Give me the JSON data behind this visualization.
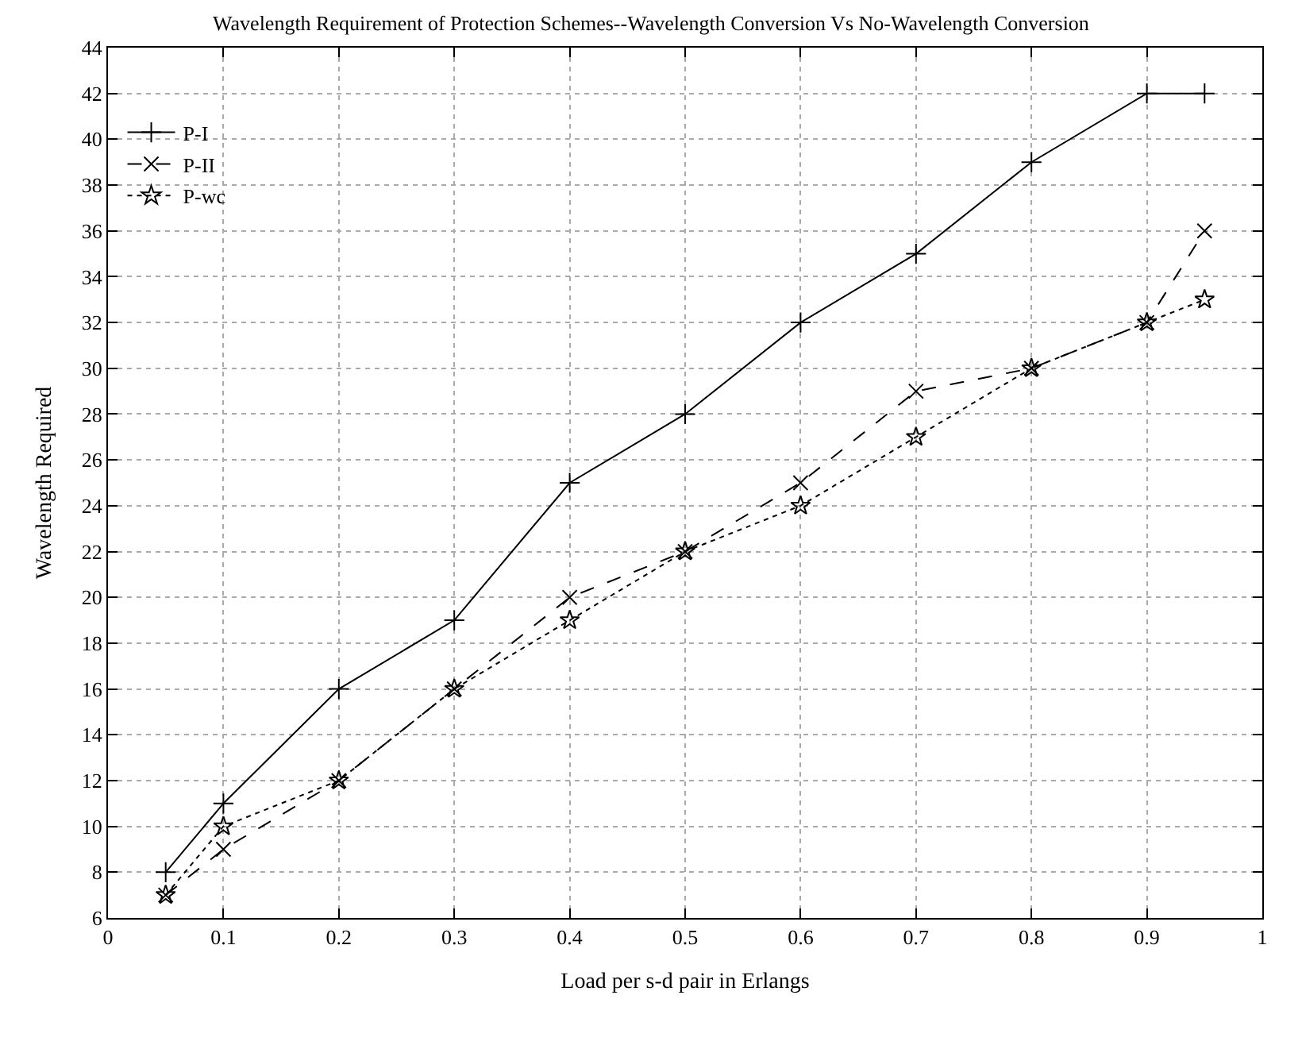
{
  "chart_data": {
    "type": "line",
    "title": "Wavelength Requirement of Protection Schemes--Wavelength Conversion Vs No-Wavelength Conversion",
    "xlabel": "Load per s-d pair in Erlangs",
    "ylabel": "Wavelength Required",
    "x": [
      0.05,
      0.1,
      0.2,
      0.3,
      0.4,
      0.5,
      0.6,
      0.7,
      0.8,
      0.9,
      0.95
    ],
    "series": [
      {
        "name": "P-I",
        "color": "#000000",
        "marker": "cross",
        "line_style": "solid",
        "values": [
          8,
          11,
          16,
          19,
          25,
          28,
          32,
          35,
          39,
          42,
          42
        ]
      },
      {
        "name": "P-II",
        "color": "#000000",
        "marker": "x",
        "line_style": "dashed",
        "values": [
          7,
          9,
          12,
          16,
          20,
          22,
          25,
          29,
          30,
          32,
          36
        ]
      },
      {
        "name": "P-wc",
        "color": "#000000",
        "marker": "star",
        "line_style": "dotted",
        "values": [
          7,
          10,
          12,
          16,
          19,
          22,
          24,
          27,
          30,
          32,
          33
        ]
      }
    ],
    "xlim": [
      0,
      1
    ],
    "xticks": [
      0,
      0.1,
      0.2,
      0.3,
      0.4,
      0.5,
      0.6,
      0.7,
      0.8,
      0.9,
      1
    ],
    "ylim": [
      6,
      44
    ],
    "yticks": [
      6,
      8,
      10,
      12,
      14,
      16,
      18,
      20,
      22,
      24,
      26,
      28,
      30,
      32,
      34,
      36,
      38,
      40,
      42,
      44
    ],
    "grid": true,
    "legend": "top left"
  }
}
